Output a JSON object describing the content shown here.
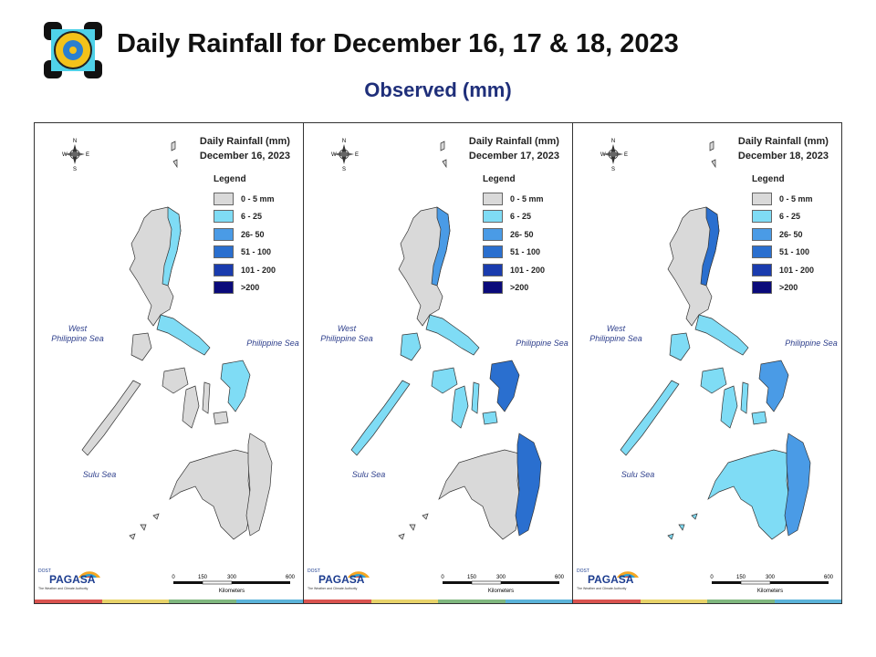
{
  "header": {
    "title": "Daily Rainfall for December 16, 17 & 18, 2023",
    "subtitle": "Observed (mm)"
  },
  "legend": {
    "title": "Legend",
    "items": [
      {
        "label": "0 - 5 mm",
        "color": "#d9d9d9"
      },
      {
        "label": "6 - 25",
        "color": "#7fdcf5"
      },
      {
        "label": "26- 50",
        "color": "#4a9be6"
      },
      {
        "label": "51 - 100",
        "color": "#2a6fcf"
      },
      {
        "label": "101 - 200",
        "color": "#1a3cae"
      },
      {
        "label": ">200",
        "color": "#0a0a7a"
      }
    ]
  },
  "seas": {
    "west_line1": "West",
    "west_line2": "Philippine Sea",
    "philippine": "Philippine Sea",
    "sulu": "Sulu Sea"
  },
  "compass": {
    "n": "N",
    "e": "E",
    "s": "S",
    "w": "W"
  },
  "scale": {
    "ticks": [
      "0",
      "150",
      "300",
      "600"
    ],
    "unit": "Kilometers"
  },
  "branding": {
    "agency": "PAGASA",
    "dost": "DOST",
    "tagline": "The Weather and Climate Authority"
  },
  "stripe_colors": [
    "#d9534f",
    "#e8d36a",
    "#7fb77e",
    "#5bb3d9"
  ],
  "maps": [
    {
      "title_line1": "Daily Rainfall (mm)",
      "title_line2": "December 16, 2023",
      "zones": {
        "luzon": "#d9d9d9",
        "luzon_east": "#7fdcf5",
        "bicol": "#7fdcf5",
        "visayas": "#d9d9d9",
        "samar": "#7fdcf5",
        "mindanao": "#d9d9d9",
        "mindanao_east": "#d9d9d9",
        "palawan": "#d9d9d9"
      }
    },
    {
      "title_line1": "Daily Rainfall (mm)",
      "title_line2": "December 17, 2023",
      "zones": {
        "luzon": "#d9d9d9",
        "luzon_east": "#4a9be6",
        "bicol": "#7fdcf5",
        "visayas": "#7fdcf5",
        "samar": "#2a6fcf",
        "mindanao": "#d9d9d9",
        "mindanao_east": "#2a6fcf",
        "palawan": "#7fdcf5"
      }
    },
    {
      "title_line1": "Daily Rainfall (mm)",
      "title_line2": "December 18, 2023",
      "zones": {
        "luzon": "#d9d9d9",
        "luzon_east": "#2a6fcf",
        "bicol": "#7fdcf5",
        "visayas": "#7fdcf5",
        "samar": "#4a9be6",
        "mindanao": "#7fdcf5",
        "mindanao_east": "#4a9be6",
        "palawan": "#7fdcf5"
      }
    }
  ]
}
